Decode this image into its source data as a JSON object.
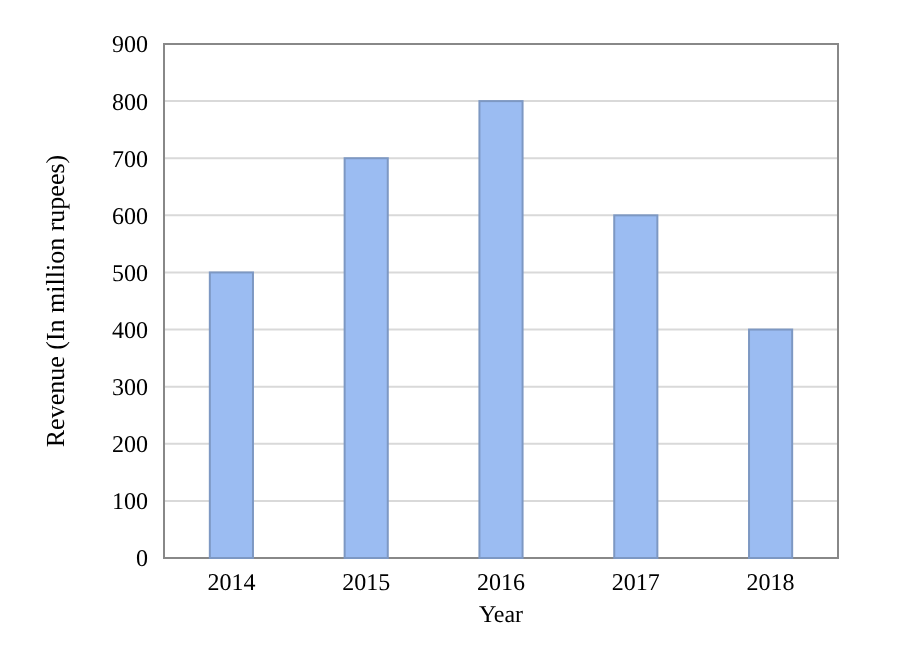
{
  "chart_data": {
    "type": "bar",
    "xlabel": "Year",
    "ylabel": "Revenue (In million rupees)",
    "categories": [
      "2014",
      "2015",
      "2016",
      "2017",
      "2018"
    ],
    "values": [
      500,
      700,
      800,
      600,
      400
    ],
    "color": "#9bbcf2",
    "ylim": [
      0,
      900
    ],
    "yticks": [
      0,
      100,
      200,
      300,
      400,
      500,
      600,
      700,
      800,
      900
    ],
    "grid": "y"
  }
}
